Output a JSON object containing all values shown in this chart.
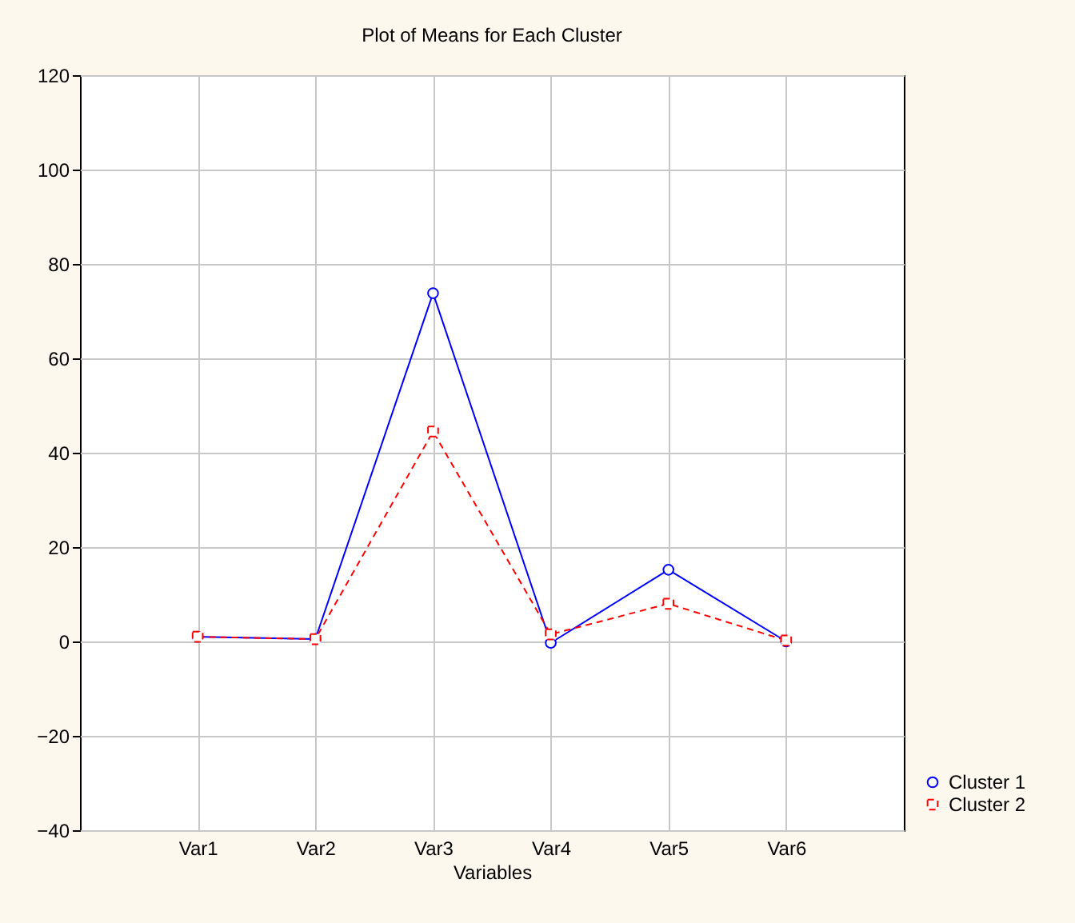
{
  "chart_data": {
    "type": "line",
    "title": "Plot of Means for Each Cluster",
    "xlabel": "Variables",
    "categories": [
      "Var1",
      "Var2",
      "Var3",
      "Var4",
      "Var5",
      "Var6"
    ],
    "series": [
      {
        "name": "Cluster  1",
        "color": "#0000ff",
        "marker": "circle",
        "line_style": "solid",
        "values": [
          1,
          0.5,
          73.8,
          -0.3,
          15.2,
          0
        ]
      },
      {
        "name": "Cluster  2",
        "color": "#ff0000",
        "marker": "square",
        "line_style": "dashed",
        "values": [
          1,
          0.5,
          44.5,
          1.5,
          8,
          0.2
        ]
      }
    ],
    "ylim": [
      -40,
      120
    ],
    "yticks": [
      -40,
      -20,
      0,
      20,
      40,
      60,
      80,
      100,
      120
    ],
    "grid": true,
    "legend": "bottom right"
  }
}
